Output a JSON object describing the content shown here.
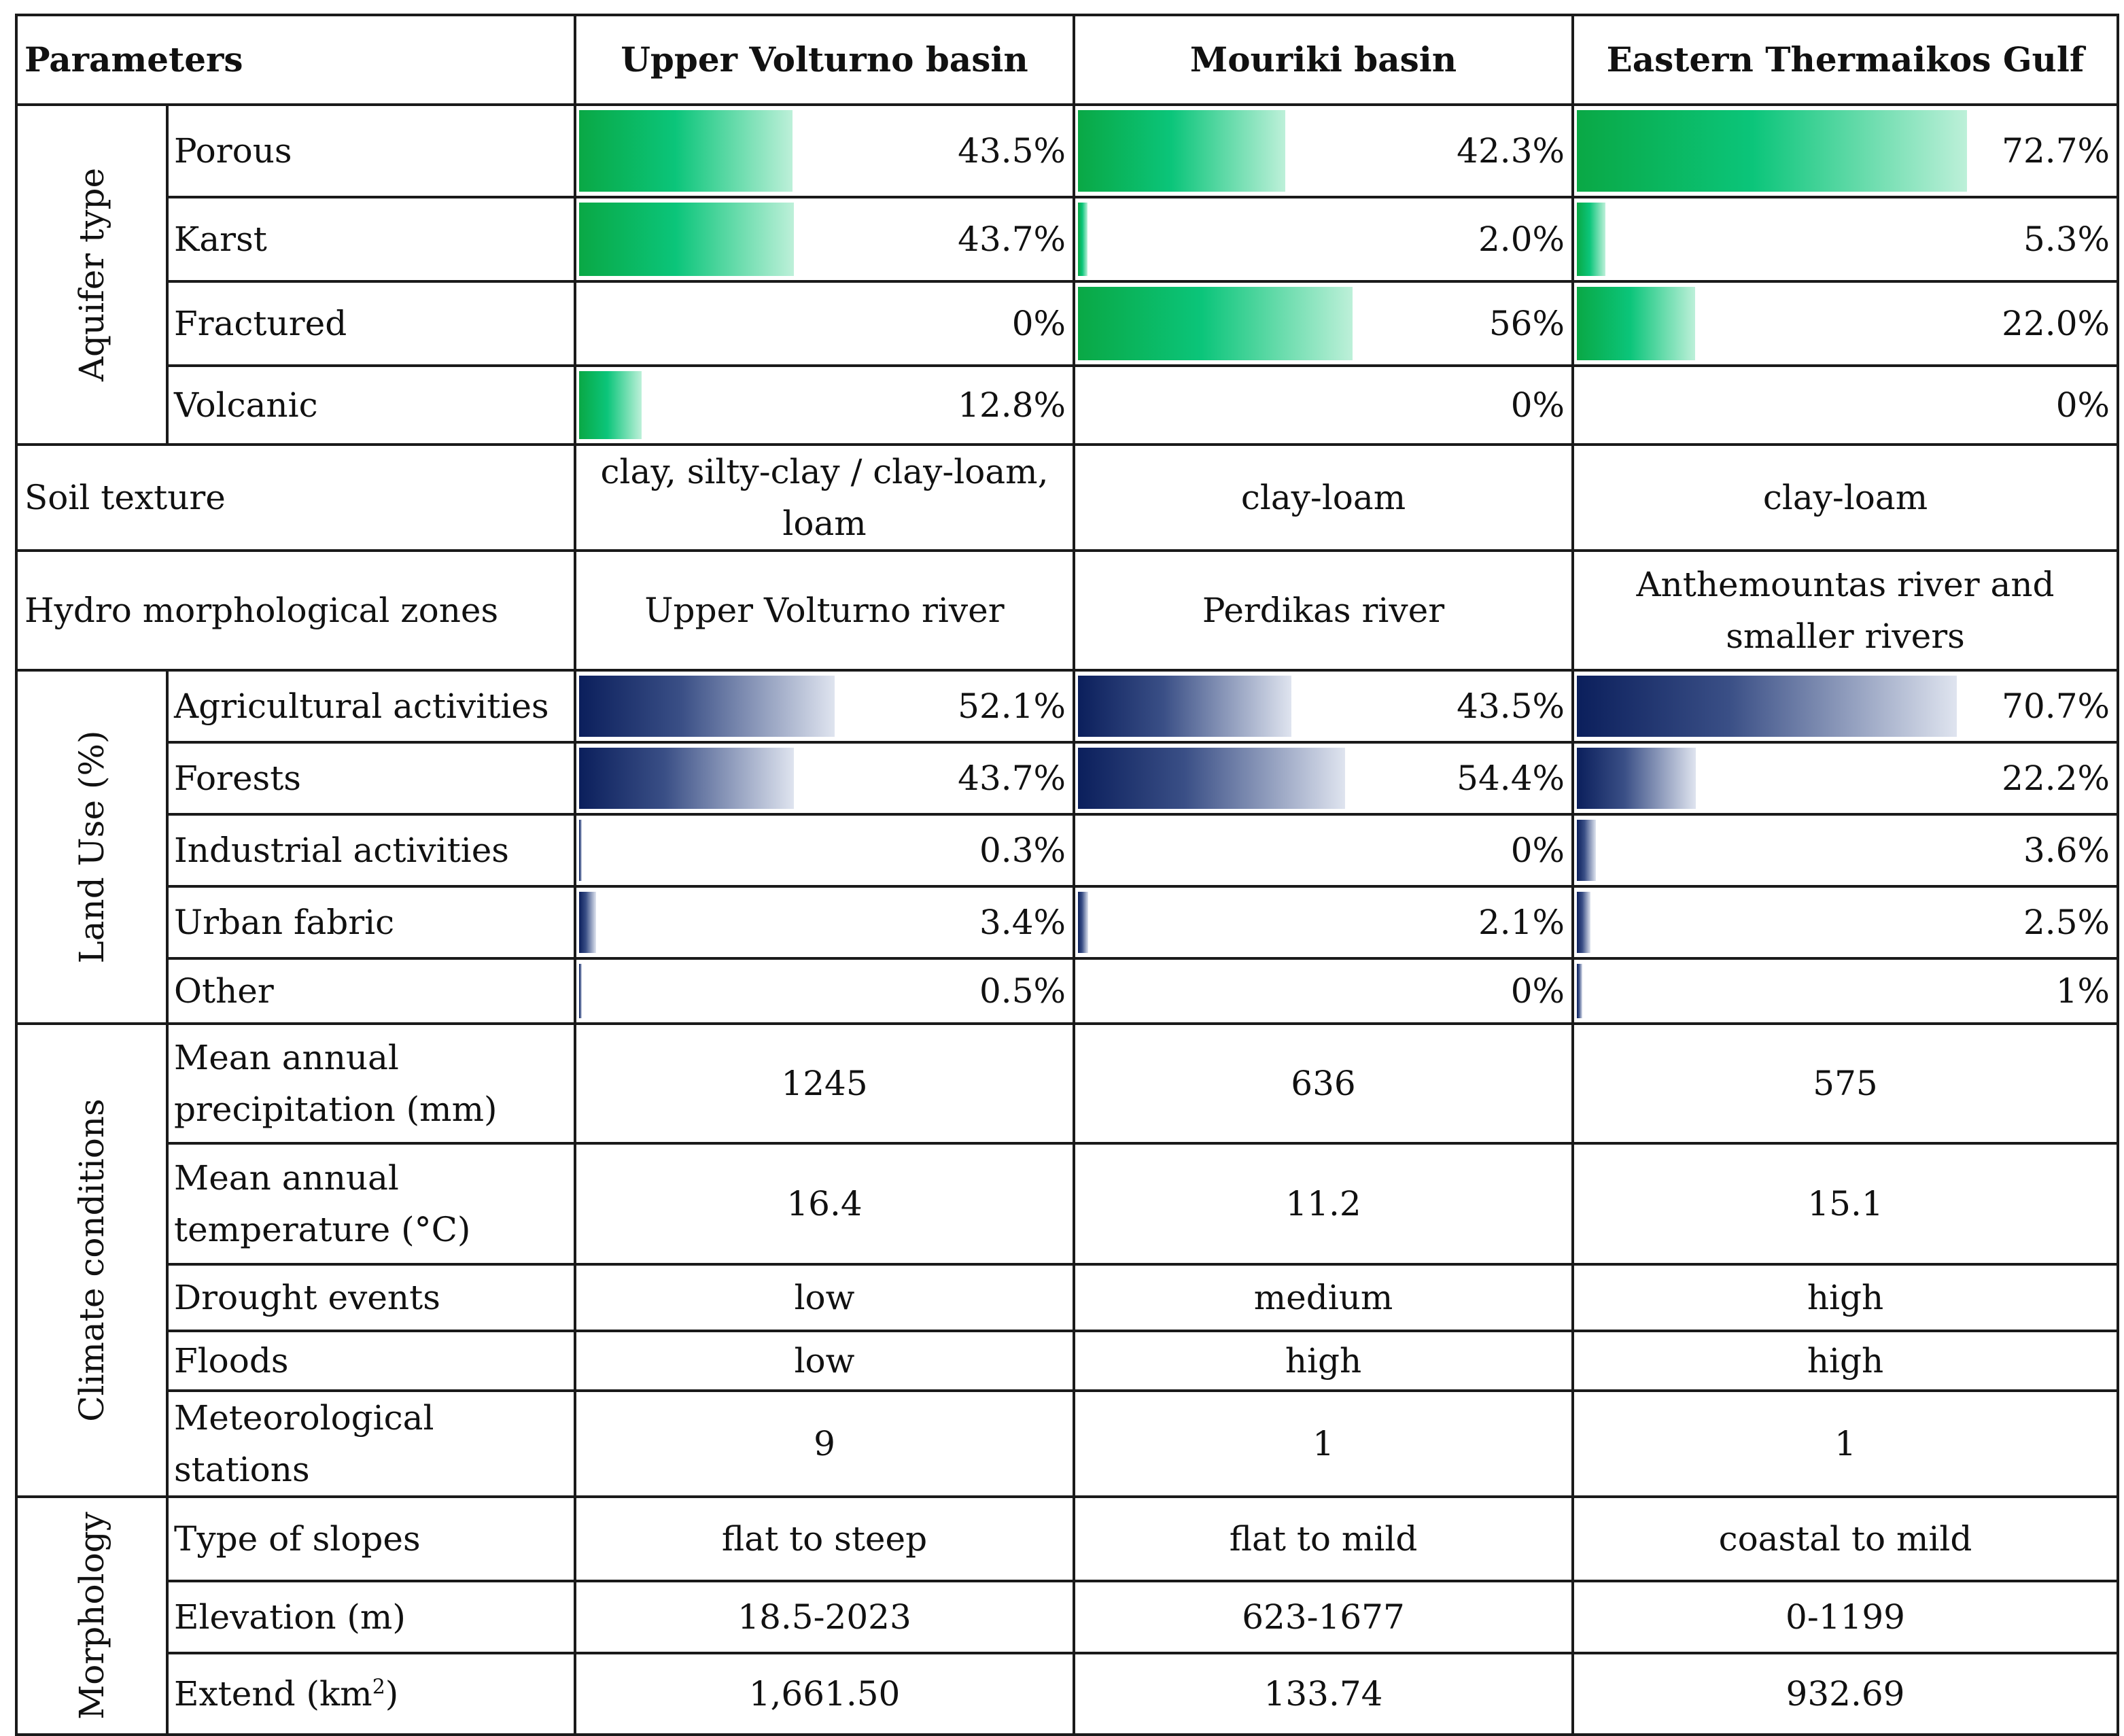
{
  "header": {
    "parameters": "Parameters",
    "basins": [
      "Upper Volturno basin",
      "Mouriki basin",
      "Eastern Thermaikos Gulf"
    ]
  },
  "colors": {
    "aquifer_bar": "#0bc57a",
    "landuse_bar": "#0b1f5c",
    "border": "#1a1a1a"
  },
  "aquifer": {
    "group": "Aquifer type",
    "rows": [
      {
        "label": "Porous",
        "values": [
          43.5,
          42.3,
          72.7
        ],
        "display": [
          "43.5%",
          "42.3%",
          "72.7%"
        ]
      },
      {
        "label": "Karst",
        "values": [
          43.7,
          2.0,
          5.3
        ],
        "display": [
          "43.7%",
          "2.0%",
          "5.3%"
        ]
      },
      {
        "label": "Fractured",
        "values": [
          0,
          56,
          22.0
        ],
        "display": [
          "0%",
          "56%",
          "22.0%"
        ]
      },
      {
        "label": "Volcanic",
        "values": [
          12.8,
          0,
          0
        ],
        "display": [
          "12.8%",
          "0%",
          "0%"
        ]
      }
    ]
  },
  "soil": {
    "label": "Soil texture",
    "values": [
      "clay, silty-clay / clay-loam, loam",
      "clay-loam",
      "clay-loam"
    ]
  },
  "hydro": {
    "label": "Hydro morphological zones",
    "values": [
      "Upper Volturno river",
      "Perdikas river",
      "Anthemountas river and smaller rivers"
    ]
  },
  "landuse": {
    "group": "Land Use (%)",
    "rows": [
      {
        "label": "Agricultural activities",
        "values": [
          52.1,
          43.5,
          70.7
        ],
        "display": [
          "52.1%",
          "43.5%",
          "70.7%"
        ]
      },
      {
        "label": "Forests",
        "values": [
          43.7,
          54.4,
          22.2
        ],
        "display": [
          "43.7%",
          "54.4%",
          "22.2%"
        ]
      },
      {
        "label": "Industrial activities",
        "values": [
          0.3,
          0,
          3.6
        ],
        "display": [
          "0.3%",
          "0%",
          "3.6%"
        ]
      },
      {
        "label": "Urban fabric",
        "values": [
          3.4,
          2.1,
          2.5
        ],
        "display": [
          "3.4%",
          "2.1%",
          "2.5%"
        ]
      },
      {
        "label": "Other",
        "values": [
          0.5,
          0,
          1
        ],
        "display": [
          "0.5%",
          "0%",
          "1%"
        ]
      }
    ]
  },
  "climate": {
    "group": "Climate conditions",
    "rows": [
      {
        "label": "Mean annual precipitation (mm)",
        "values": [
          "1245",
          "636",
          "575"
        ]
      },
      {
        "label": "Mean annual temperature (°C)",
        "values": [
          "16.4",
          "11.2",
          "15.1"
        ]
      },
      {
        "label": "Drought events",
        "values": [
          "low",
          "medium",
          "high"
        ]
      },
      {
        "label": "Floods",
        "values": [
          "low",
          "high",
          "high"
        ]
      },
      {
        "label": "Meteorological stations",
        "values": [
          "9",
          "1",
          "1"
        ]
      }
    ]
  },
  "morphology": {
    "group": "Morphology",
    "rows": [
      {
        "label": "Type of slopes",
        "values": [
          "flat to steep",
          "flat to mild",
          "coastal to mild"
        ]
      },
      {
        "label": "Elevation (m)",
        "values": [
          "18.5-2023",
          "623-1677",
          "0-1199"
        ]
      },
      {
        "label": "Extend (km",
        "sup": "2",
        "label_end": ")",
        "values": [
          "1,661.50",
          "133.74",
          "932.69"
        ]
      }
    ]
  }
}
